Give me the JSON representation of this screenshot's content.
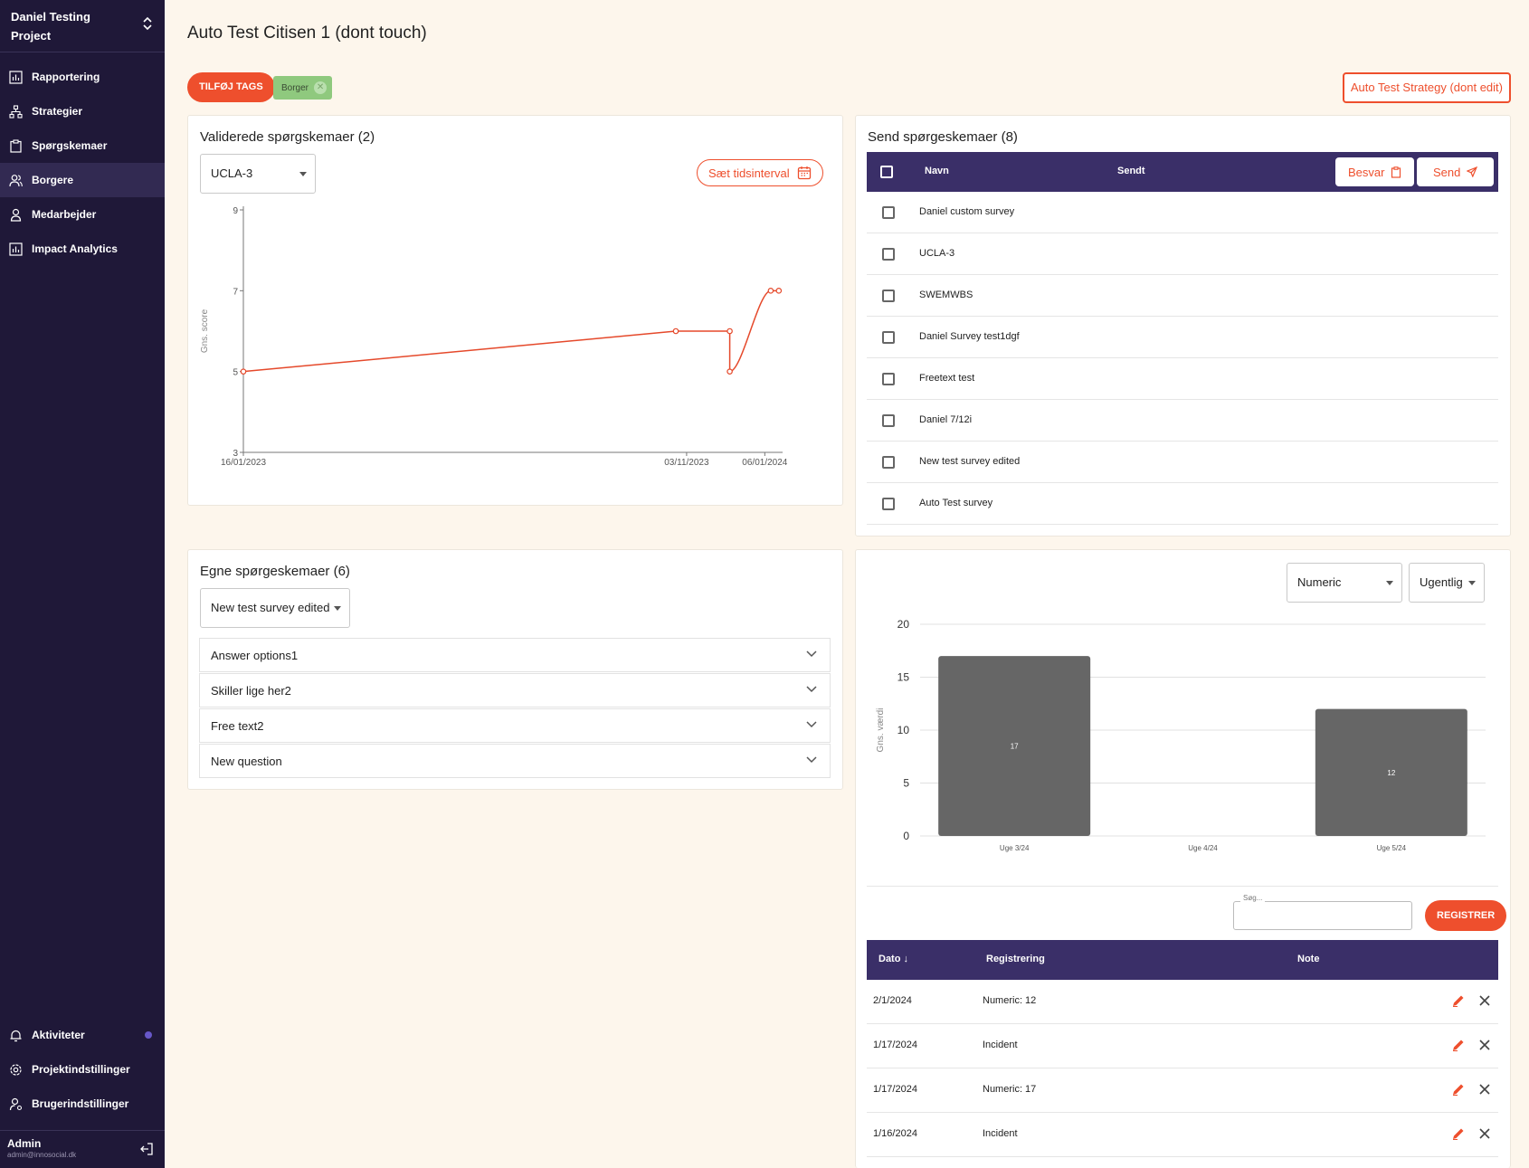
{
  "sidebar": {
    "project": "Daniel Testing Project",
    "items": [
      {
        "label": "Rapportering"
      },
      {
        "label": "Strategier"
      },
      {
        "label": "Spørgskemaer"
      },
      {
        "label": "Borgere"
      },
      {
        "label": "Medarbejder"
      },
      {
        "label": "Impact Analytics"
      }
    ],
    "bottom_items": [
      {
        "label": "Aktiviteter"
      },
      {
        "label": "Projektindstillinger"
      },
      {
        "label": "Brugerindstillinger"
      }
    ],
    "user": {
      "name": "Admin",
      "email": "admin@innosocial.dk"
    }
  },
  "header": {
    "title": "Auto Test Citisen 1 (dont touch)",
    "add_tags_label": "TILFØJ TAGS",
    "tag": "Borger",
    "strategy_label": "Auto Test Strategy (dont edit)"
  },
  "validated": {
    "title": "Validerede spørgskemaer (2)",
    "select_value": "UCLA-3",
    "interval_label": "Sæt tidsinterval",
    "chart_data": {
      "type": "line",
      "ylabel": "Gns. score",
      "ylim": [
        3,
        9
      ],
      "yticks": [
        "3",
        "5",
        "7",
        "9"
      ],
      "xtick_labels": [
        "16/01/2023",
        "03/11/2023",
        "06/01/2024"
      ],
      "points": [
        {
          "t": 0,
          "y": 5
        },
        {
          "t": 0.802,
          "y": 6
        },
        {
          "t": 0.902,
          "y": 6
        },
        {
          "t": 0.902,
          "y": 5
        },
        {
          "t": 0.978,
          "y": 7
        },
        {
          "t": 0.993,
          "y": 7
        }
      ]
    }
  },
  "send": {
    "title": "Send spørgeskemaer (8)",
    "col_name": "Navn",
    "col_sent": "Sendt",
    "answer_label": "Besvar",
    "send_label": "Send",
    "rows": [
      {
        "name": "Daniel custom survey"
      },
      {
        "name": "UCLA-3"
      },
      {
        "name": "SWEMWBS"
      },
      {
        "name": "Daniel Survey test1dgf"
      },
      {
        "name": "Freetext test"
      },
      {
        "name": "Daniel 7/12i"
      },
      {
        "name": "New test survey edited"
      },
      {
        "name": "Auto Test survey"
      }
    ]
  },
  "own": {
    "title": "Egne spørgeskemaer (6)",
    "select_value": "New test survey edited",
    "questions": [
      {
        "label": "Answer options1"
      },
      {
        "label": "Skiller lige her2"
      },
      {
        "label": "Free text2"
      },
      {
        "label": "New question"
      }
    ]
  },
  "registrations": {
    "type_select": "Numeric",
    "period_select": "Ugentlig",
    "chart_data": {
      "type": "bar",
      "ylabel": "Gns. værdi",
      "ylim": [
        0,
        20
      ],
      "yticks": [
        "0",
        "5",
        "10",
        "15",
        "20"
      ],
      "categories": [
        "Uge 3/24",
        "Uge 4/24",
        "Uge 5/24"
      ],
      "values": [
        17,
        null,
        12
      ],
      "labels": [
        "17",
        "",
        "12"
      ]
    },
    "search_label": "Søg...",
    "register_label": "REGISTRER",
    "col_date": "Dato",
    "col_registration": "Registrering",
    "col_note": "Note",
    "rows": [
      {
        "date": "2/1/2024",
        "registration": "Numeric: 12",
        "note": ""
      },
      {
        "date": "1/17/2024",
        "registration": "Incident",
        "note": ""
      },
      {
        "date": "1/17/2024",
        "registration": "Numeric: 17",
        "note": ""
      },
      {
        "date": "1/16/2024",
        "registration": "Incident",
        "note": ""
      }
    ]
  }
}
